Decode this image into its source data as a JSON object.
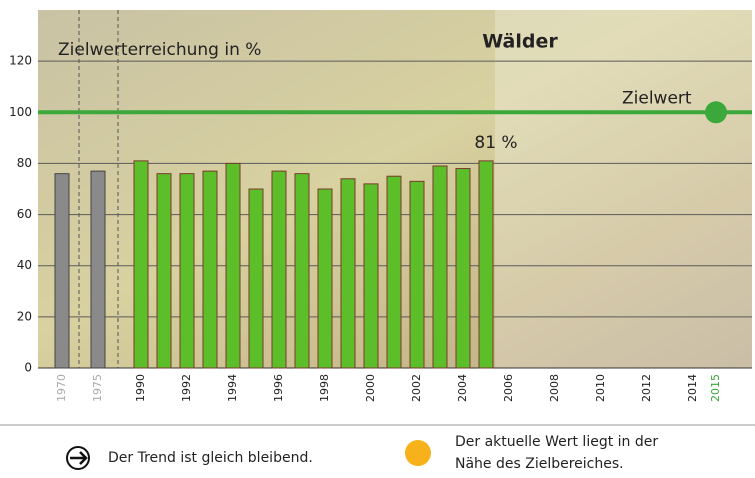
{
  "chart_data": {
    "type": "bar",
    "title": "Wälder",
    "y_label": "Zielwerterreichung in %",
    "categories": [
      "1970",
      "1975",
      "1990",
      null,
      "1992",
      null,
      "1994",
      null,
      "1996",
      null,
      "1998",
      null,
      "2000",
      null,
      "2002",
      null,
      "2004",
      null,
      "2006",
      null,
      "2008",
      null,
      "2010",
      null,
      "2012",
      null,
      "2014",
      "2015"
    ],
    "values": [
      76,
      77,
      81,
      76,
      76,
      77,
      80,
      70,
      77,
      76,
      70,
      74,
      72,
      75,
      73,
      79,
      78,
      81,
      null,
      null,
      null,
      null,
      null,
      null,
      null,
      null,
      null,
      null
    ],
    "value_labels": [
      null,
      null,
      null,
      null,
      null,
      null,
      null,
      null,
      null,
      null,
      null,
      null,
      null,
      null,
      null,
      null,
      null,
      "81 %",
      null,
      null,
      null,
      null,
      null,
      null,
      null,
      null,
      null,
      null
    ],
    "colors": [
      "#8a8a8a",
      "#8a8a8a",
      "#5cbf2a",
      "#5cbf2a",
      "#5cbf2a",
      "#5cbf2a",
      "#5cbf2a",
      "#5cbf2a",
      "#5cbf2a",
      "#5cbf2a",
      "#5cbf2a",
      "#5cbf2a",
      "#5cbf2a",
      "#5cbf2a",
      "#5cbf2a",
      "#5cbf2a",
      "#5cbf2a",
      "#5cbf2a",
      null,
      null,
      null,
      null,
      null,
      null,
      null,
      null,
      null,
      null
    ],
    "target": {
      "label": "Zielwert",
      "value": 100,
      "color": "#3aa83a"
    },
    "ylim": [
      0,
      140
    ],
    "yticks": [
      0,
      20,
      40,
      60,
      80,
      100,
      120
    ],
    "grid": true
  },
  "footer": {
    "trend": "Der Trend ist gleich bleibend.",
    "status": [
      "Der aktuelle Wert liegt in der",
      "Nähe des Zielbereiches."
    ]
  }
}
